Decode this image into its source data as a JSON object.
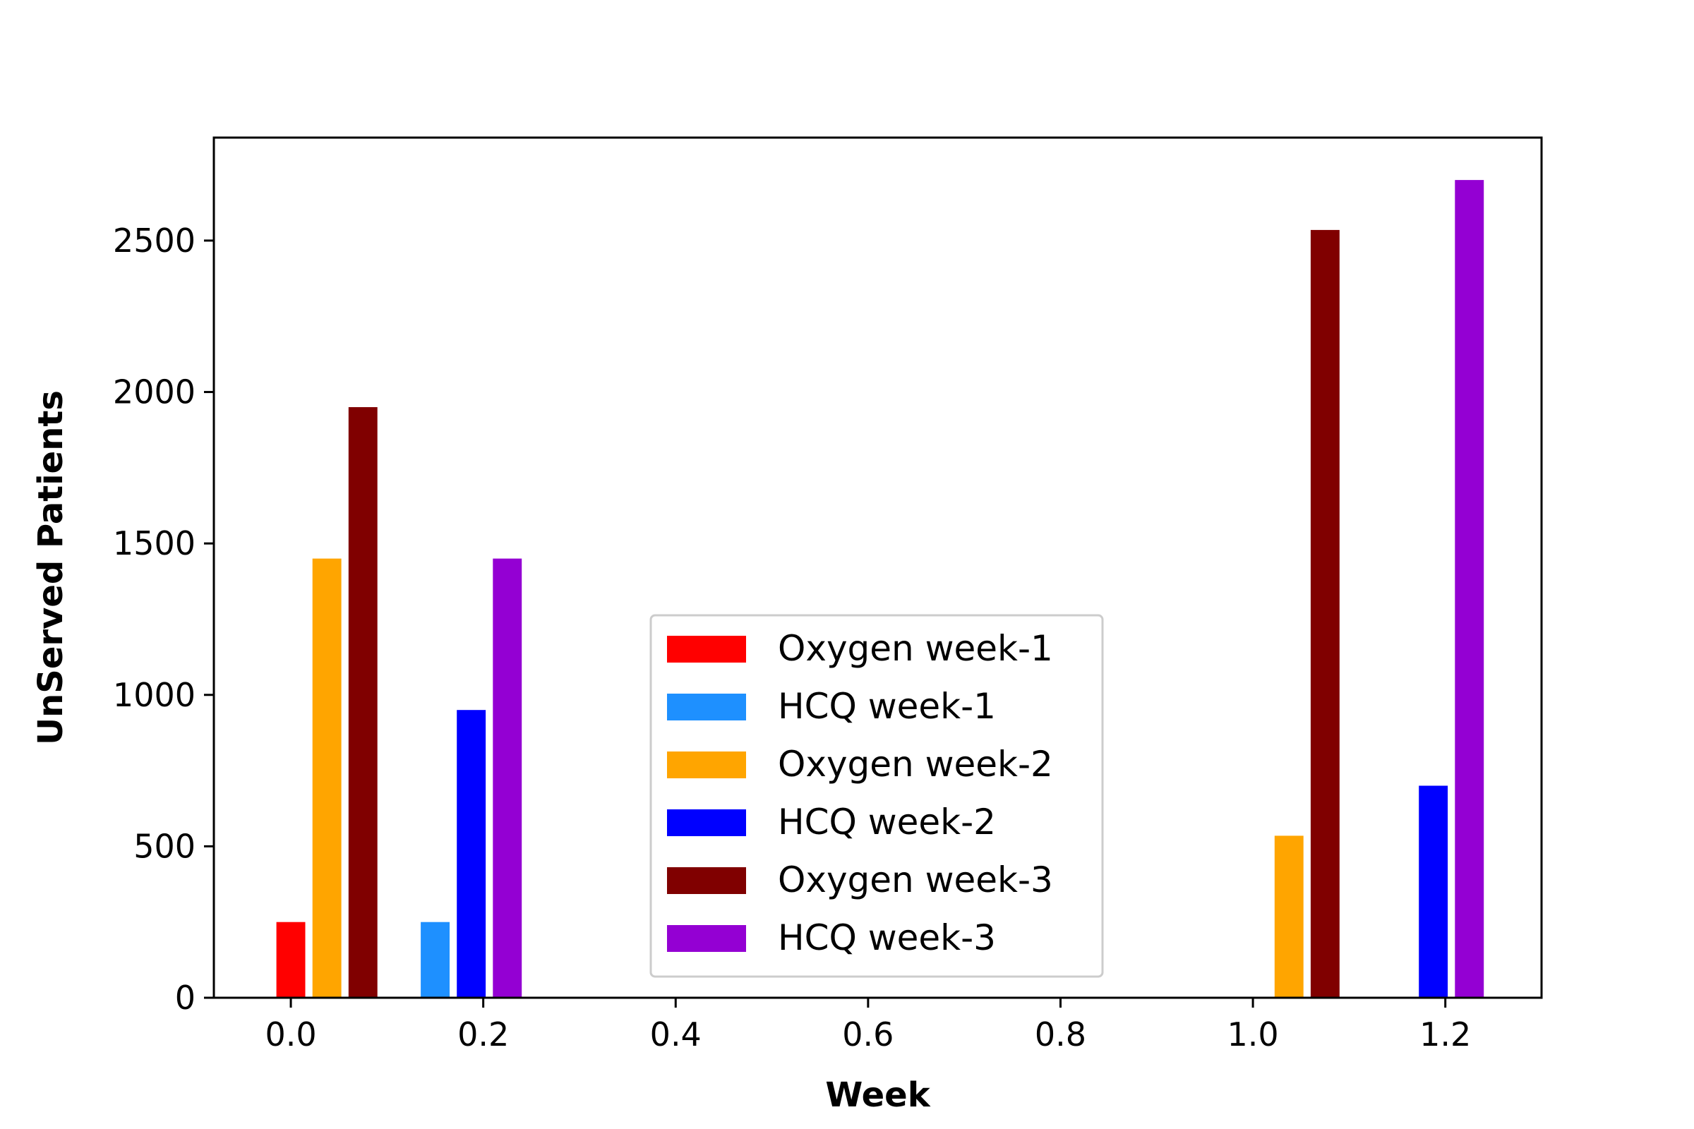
{
  "chart_data": {
    "type": "bar",
    "title": "",
    "xlabel": "Week",
    "ylabel": "UnServed Patients",
    "xlim": [
      -0.08,
      1.3
    ],
    "ylim": [
      0,
      2840
    ],
    "xticks": [
      0.0,
      0.2,
      0.4,
      0.6,
      0.8,
      1.0,
      1.2
    ],
    "xtick_labels": [
      "0.0",
      "0.2",
      "0.4",
      "0.6",
      "0.8",
      "1.0",
      "1.2"
    ],
    "yticks": [
      0,
      500,
      1000,
      1500,
      2000,
      2500
    ],
    "ytick_labels": [
      "0",
      "500",
      "1000",
      "1500",
      "2000",
      "2500"
    ],
    "bar_width": 0.03,
    "grid": false,
    "legend_position": "lower-center",
    "series": [
      {
        "name": "Oxygen week-1",
        "color": "#ff0000",
        "x": [
          0.0
        ],
        "values": [
          250
        ]
      },
      {
        "name": "HCQ week-1",
        "color": "#1e90ff",
        "x": [
          0.15
        ],
        "values": [
          250
        ]
      },
      {
        "name": "Oxygen week-2",
        "color": "#ffa500",
        "x": [
          0.0375,
          1.0375
        ],
        "values": [
          1450,
          535
        ]
      },
      {
        "name": "HCQ week-2",
        "color": "#0000ff",
        "x": [
          0.1875,
          1.1875
        ],
        "values": [
          950,
          700
        ]
      },
      {
        "name": "Oxygen week-3",
        "color": "#800000",
        "x": [
          0.075,
          1.075
        ],
        "values": [
          1950,
          2535
        ]
      },
      {
        "name": "HCQ week-3",
        "color": "#9400d3",
        "x": [
          0.225,
          1.225
        ],
        "values": [
          1450,
          2700
        ]
      }
    ]
  }
}
